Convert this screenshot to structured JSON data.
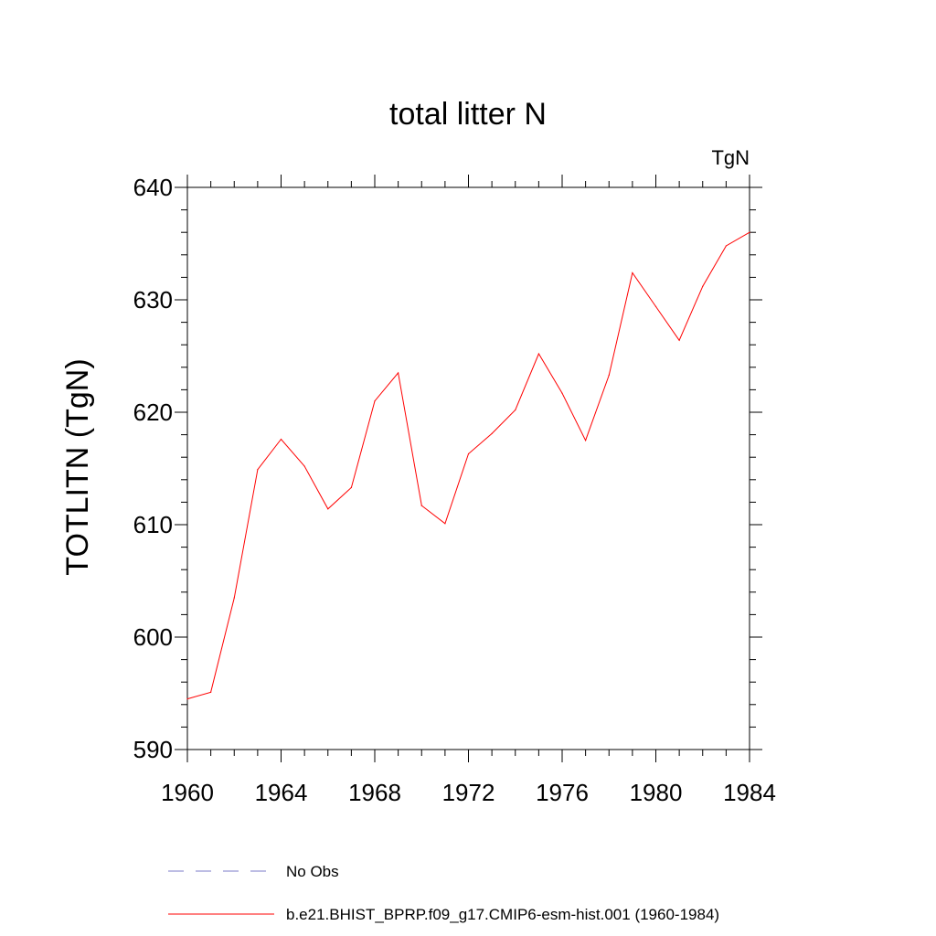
{
  "chart_data": {
    "type": "line",
    "title": "total litter N",
    "units_label": "TgN",
    "xlabel": "",
    "ylabel": "TOTLITN  (TgN)",
    "xlim": [
      1960,
      1984
    ],
    "ylim": [
      590,
      640
    ],
    "x_ticks": [
      1960,
      1964,
      1968,
      1972,
      1976,
      1980,
      1984
    ],
    "y_ticks": [
      590,
      600,
      610,
      620,
      630,
      640
    ],
    "x_tick_labels": [
      "1960",
      "1964",
      "1968",
      "1972",
      "1976",
      "1980",
      "1984"
    ],
    "y_tick_labels": [
      "590",
      "600",
      "610",
      "620",
      "630",
      "640"
    ],
    "x_minor_step": 1,
    "y_minor_step": 2,
    "grid": false,
    "legend_position": "bottom",
    "series": [
      {
        "name": "b.e21.BHIST_BPRP.f09_g17.CMIP6-esm-hist.001 (1960-1984)",
        "color": "#ff0000",
        "style": "solid",
        "x": [
          1960,
          1961,
          1962,
          1963,
          1964,
          1965,
          1966,
          1967,
          1968,
          1969,
          1970,
          1971,
          1972,
          1973,
          1974,
          1975,
          1976,
          1977,
          1978,
          1979,
          1980,
          1981,
          1982,
          1983,
          1984
        ],
        "values": [
          594.5,
          595.1,
          603.5,
          614.9,
          617.6,
          615.2,
          611.4,
          613.3,
          621.0,
          623.5,
          611.7,
          610.1,
          616.3,
          618.1,
          620.2,
          625.2,
          621.7,
          617.5,
          623.3,
          632.4,
          629.4,
          626.4,
          631.2,
          634.8,
          636.0
        ]
      }
    ],
    "legend": [
      {
        "label": "No Obs",
        "color": "#7b7bc8",
        "style": "dashed"
      },
      {
        "label": "b.e21.BHIST_BPRP.f09_g17.CMIP6-esm-hist.001 (1960-1984)",
        "color": "#ff0000",
        "style": "solid"
      }
    ]
  }
}
